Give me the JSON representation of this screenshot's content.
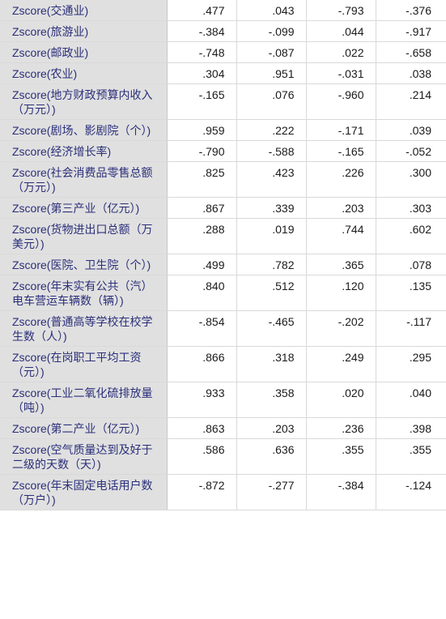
{
  "table": {
    "rows": [
      {
        "label": "Zscore(交通业)",
        "values": [
          ".477",
          ".043",
          "-.793",
          "-.376"
        ]
      },
      {
        "label": "Zscore(旅游业)",
        "values": [
          "-.384",
          "-.099",
          ".044",
          "-.917"
        ]
      },
      {
        "label": "Zscore(邮政业)",
        "values": [
          "-.748",
          "-.087",
          ".022",
          "-.658"
        ]
      },
      {
        "label": "Zscore(农业)",
        "values": [
          ".304",
          ".951",
          "-.031",
          ".038"
        ]
      },
      {
        "label": "Zscore(地方财政预算内收入（万元）)",
        "values": [
          "-.165",
          ".076",
          "-.960",
          ".214"
        ]
      },
      {
        "label": "Zscore(剧场、影剧院（个）)",
        "values": [
          ".959",
          ".222",
          "-.171",
          ".039"
        ]
      },
      {
        "label": "Zscore(经济增长率)",
        "values": [
          "-.790",
          "-.588",
          "-.165",
          "-.052"
        ]
      },
      {
        "label": "Zscore(社会消费品零售总额（万元）)",
        "values": [
          ".825",
          ".423",
          ".226",
          ".300"
        ]
      },
      {
        "label": "Zscore(第三产业（亿元）)",
        "values": [
          ".867",
          ".339",
          ".203",
          ".303"
        ]
      },
      {
        "label": "Zscore(货物进出口总额（万美元）)",
        "values": [
          ".288",
          ".019",
          ".744",
          ".602"
        ]
      },
      {
        "label": "Zscore(医院、卫生院（个）)",
        "values": [
          ".499",
          ".782",
          ".365",
          ".078"
        ]
      },
      {
        "label": "Zscore(年末实有公共（汽）电车营运车辆数（辆）)",
        "values": [
          ".840",
          ".512",
          ".120",
          ".135"
        ]
      },
      {
        "label": "Zscore(普通高等学校在校学生数（人）)",
        "values": [
          "-.854",
          "-.465",
          "-.202",
          "-.117"
        ]
      },
      {
        "label": "Zscore(在岗职工平均工资（元）)",
        "values": [
          ".866",
          ".318",
          ".249",
          ".295"
        ]
      },
      {
        "label": "Zscore(工业二氧化硫排放量（吨）)",
        "values": [
          ".933",
          ".358",
          ".020",
          ".040"
        ]
      },
      {
        "label": "Zscore(第二产业（亿元）)",
        "values": [
          ".863",
          ".203",
          ".236",
          ".398"
        ]
      },
      {
        "label": "Zscore(空气质量达到及好于二级的天数（天）)",
        "values": [
          ".586",
          ".636",
          ".355",
          ".355"
        ]
      },
      {
        "label": "Zscore(年末固定电话用户数（万户）)",
        "values": [
          "-.872",
          "-.277",
          "-.384",
          "-.124"
        ]
      }
    ]
  }
}
